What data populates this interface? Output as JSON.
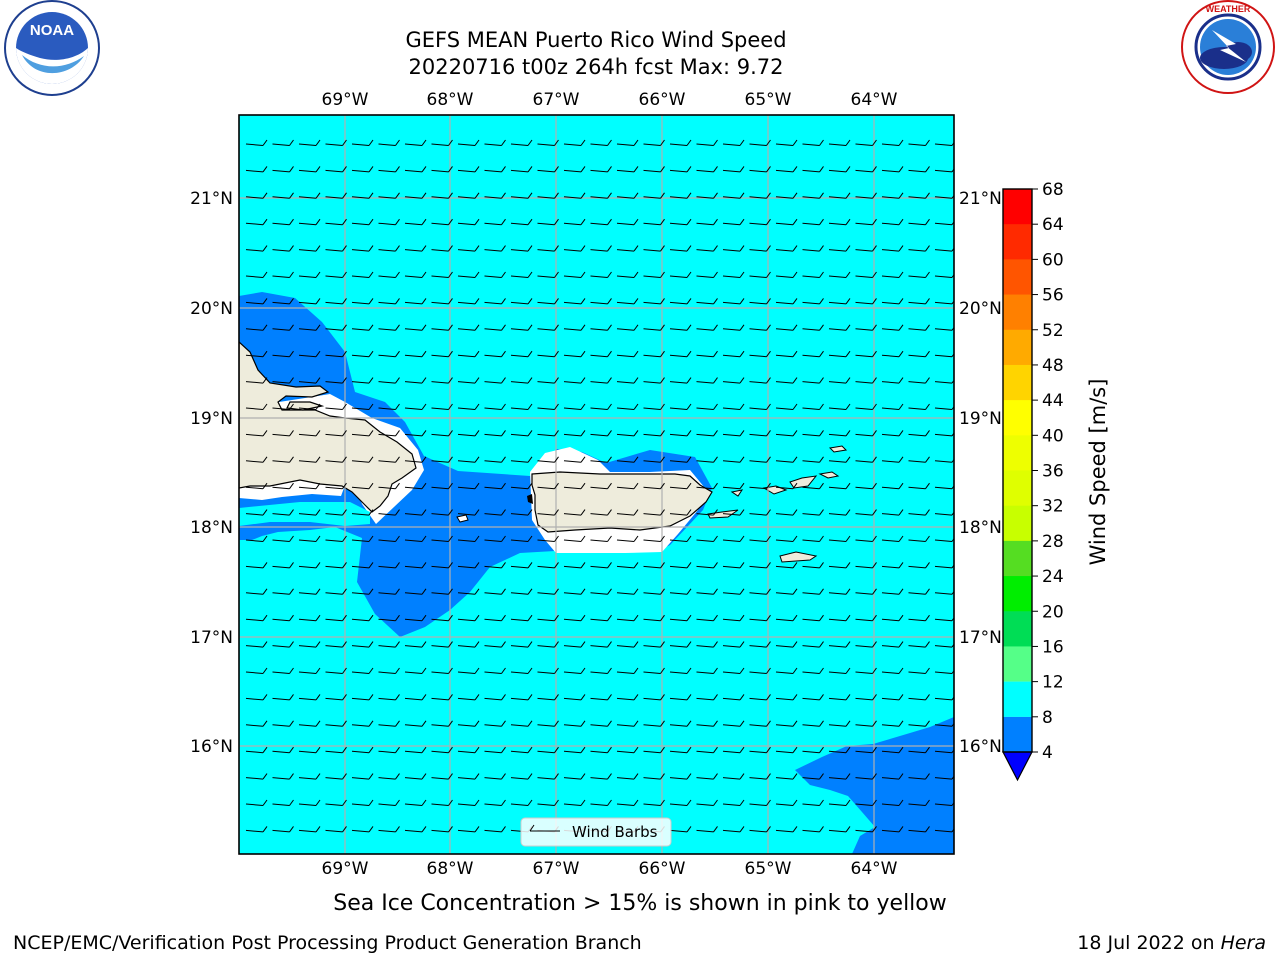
{
  "header": {
    "title_line1": "GEFS MEAN Puerto Rico Wind Speed",
    "title_line2": "20220716 t00z 264h fcst   Max: 9.72"
  },
  "logos": {
    "left": "NOAA",
    "left_ring_text": "NATIONAL OCEANIC AND ATMOSPHERIC ADMINISTRATION · U.S. DEPARTMENT OF COMMERCE",
    "right_ring_text": "NATIONAL WEATHER SERVICE"
  },
  "map": {
    "lon_labels": [
      "69°W",
      "68°W",
      "67°W",
      "66°W",
      "65°W",
      "64°W"
    ],
    "lat_labels": [
      "21°N",
      "20°N",
      "19°N",
      "18°N",
      "17°N",
      "16°N"
    ],
    "legend_label": "Wind Barbs",
    "colors": {
      "ocean_8_12": "#00ffff",
      "band_4_8": "#0080ff",
      "land": "#eeecdc",
      "gridline": "#b0b0b0"
    }
  },
  "colorbar": {
    "label": "Wind Speed [m/s]",
    "ticks": [
      "68",
      "64",
      "60",
      "56",
      "52",
      "48",
      "44",
      "40",
      "36",
      "32",
      "28",
      "24",
      "20",
      "16",
      "12",
      "8",
      "4"
    ],
    "colors_top_to_bottom": [
      "#ff0000",
      "#ff2a00",
      "#ff5500",
      "#ff8000",
      "#ffaa00",
      "#ffd400",
      "#ffff00",
      "#eeff00",
      "#dfff00",
      "#c8ff00",
      "#55dd22",
      "#00ee00",
      "#00dd55",
      "#55ff88",
      "#aaffff",
      "#55ffff",
      "#00ffff",
      "#0080ff"
    ],
    "extend_color": "#0000ff"
  },
  "footer": {
    "caption": "Sea Ice Concentration > 15% is shown in pink to yellow",
    "credit": "NCEP/EMC/Verification Post Processing Product Generation Branch",
    "date_prefix": "18 Jul 2022 on ",
    "date_machine": "Hera"
  }
}
